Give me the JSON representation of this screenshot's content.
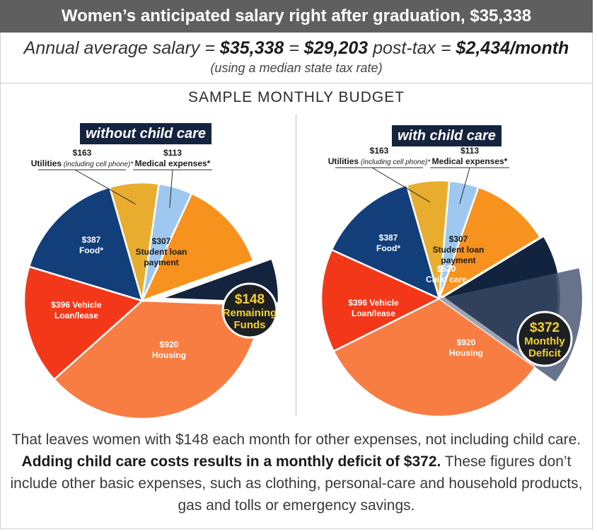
{
  "header": {
    "title": "Women’s anticipated salary right after graduation, $35,338",
    "formula_prefix": "Annual average salary = ",
    "formula_salary": "$35,338",
    "formula_eq": " = ",
    "formula_posttax": "$29,203",
    "formula_mid": " post-tax = ",
    "formula_month": "$2,434/month",
    "note": "(using a median state tax rate)"
  },
  "section_title": "SAMPLE MONTHLY BUDGET",
  "footer": {
    "line1": "That leaves women with $148 each month for other expenses, not including child care.",
    "line1_bold": "Adding child care costs results in a monthly deficit of $372.",
    "line2": "These figures don’t include other basic expenses, such as clothing, personal-care and household products, gas and tolls or emergency savings."
  },
  "colors": {
    "utilities": "#e8ad2f",
    "medical": "#9ec8f0",
    "student_loan": "#f7921e",
    "remaining": "#14233e",
    "housing": "#f77d43",
    "vehicle": "#f23819",
    "food": "#123f7a",
    "deficit_overlay": "#4b5b75"
  },
  "chart_data": [
    {
      "type": "pie",
      "title": "without child care",
      "slices": [
        {
          "key": "utilities",
          "amount": "$163",
          "label": "Utilities",
          "label_note": "(including cell phone)*",
          "value": 163
        },
        {
          "key": "medical",
          "amount": "$113",
          "label": "Medical expenses*",
          "value": 113
        },
        {
          "key": "student_loan",
          "amount": "$307",
          "label": "Student loan payment",
          "value": 307
        },
        {
          "key": "remaining",
          "amount": "$148",
          "label": "Remaining Funds",
          "value": 148
        },
        {
          "key": "housing",
          "amount": "$920",
          "label": "Housing",
          "value": 920
        },
        {
          "key": "vehicle",
          "amount": "$396 Vehicle",
          "label": "Loan/lease",
          "value": 396
        },
        {
          "key": "food",
          "amount": "$387",
          "label": "Food*",
          "value": 387
        }
      ],
      "callout": {
        "amount": "$148",
        "line1": "Remaining",
        "line2": "Funds"
      }
    },
    {
      "type": "pie",
      "title": "with child care",
      "slices": [
        {
          "key": "utilities",
          "amount": "$163",
          "label": "Utilities",
          "label_note": "(including cell phone)*",
          "value": 163
        },
        {
          "key": "medical",
          "amount": "$113",
          "label": "Medical expenses*",
          "value": 113
        },
        {
          "key": "student_loan",
          "amount": "$307",
          "label": "Student loan payment",
          "value": 307
        },
        {
          "key": "child_care",
          "amount": "$520",
          "label": "Child care",
          "value": 520
        },
        {
          "key": "housing",
          "amount": "$920",
          "label": "Housing",
          "value": 920
        },
        {
          "key": "vehicle",
          "amount": "$396 Vehicle",
          "label": "Loan/lease",
          "value": 396
        },
        {
          "key": "food",
          "amount": "$387",
          "label": "Food*",
          "value": 387
        }
      ],
      "deficit": 372,
      "callout": {
        "amount": "$372",
        "line1": "Monthly",
        "line2": "Deficit"
      }
    }
  ]
}
